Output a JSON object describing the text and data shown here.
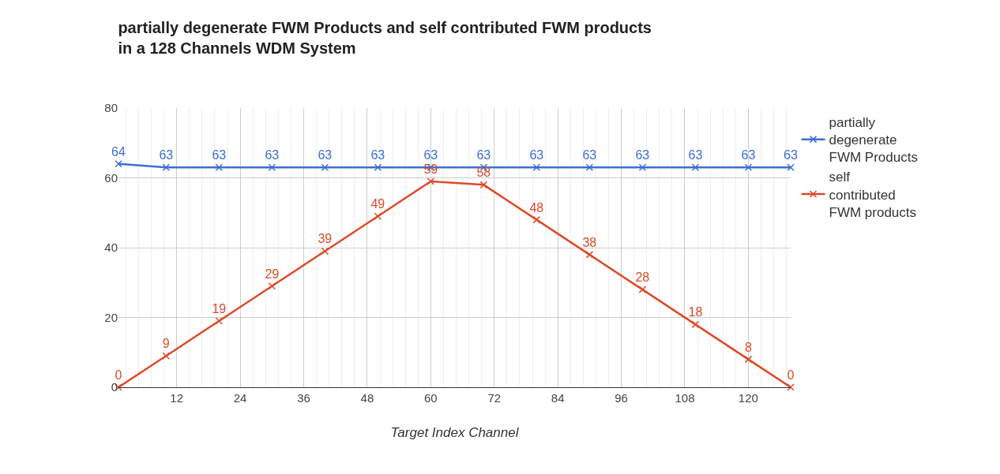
{
  "chart_data": {
    "type": "line",
    "title": "partially degenerate FWM Products and self contributed FWM products in a 128 Channels WDM System",
    "xlabel": "Target Index Channel",
    "x": [
      1,
      10,
      20,
      30,
      40,
      50,
      60,
      70,
      80,
      90,
      100,
      110,
      120,
      128
    ],
    "series": [
      {
        "name": "partially degenerate FWM Products",
        "color": "#3c6fd6",
        "values": [
          64,
          63,
          63,
          63,
          63,
          63,
          63,
          63,
          63,
          63,
          63,
          63,
          63,
          63
        ]
      },
      {
        "name": "self contributed FWM products",
        "color": "#dc4b2a",
        "values": [
          0,
          9,
          19,
          29,
          39,
          49,
          59,
          58,
          48,
          38,
          28,
          18,
          8,
          0
        ]
      }
    ],
    "xlim": [
      1,
      128
    ],
    "xticks": [
      12,
      24,
      36,
      48,
      60,
      72,
      84,
      96,
      108,
      120
    ],
    "ylim": [
      0,
      80
    ],
    "yticks": [
      0,
      20,
      40,
      60,
      80
    ],
    "grid": true,
    "legend": "top right",
    "marker": "cross",
    "line_style": "solid",
    "data_labels": true
  }
}
